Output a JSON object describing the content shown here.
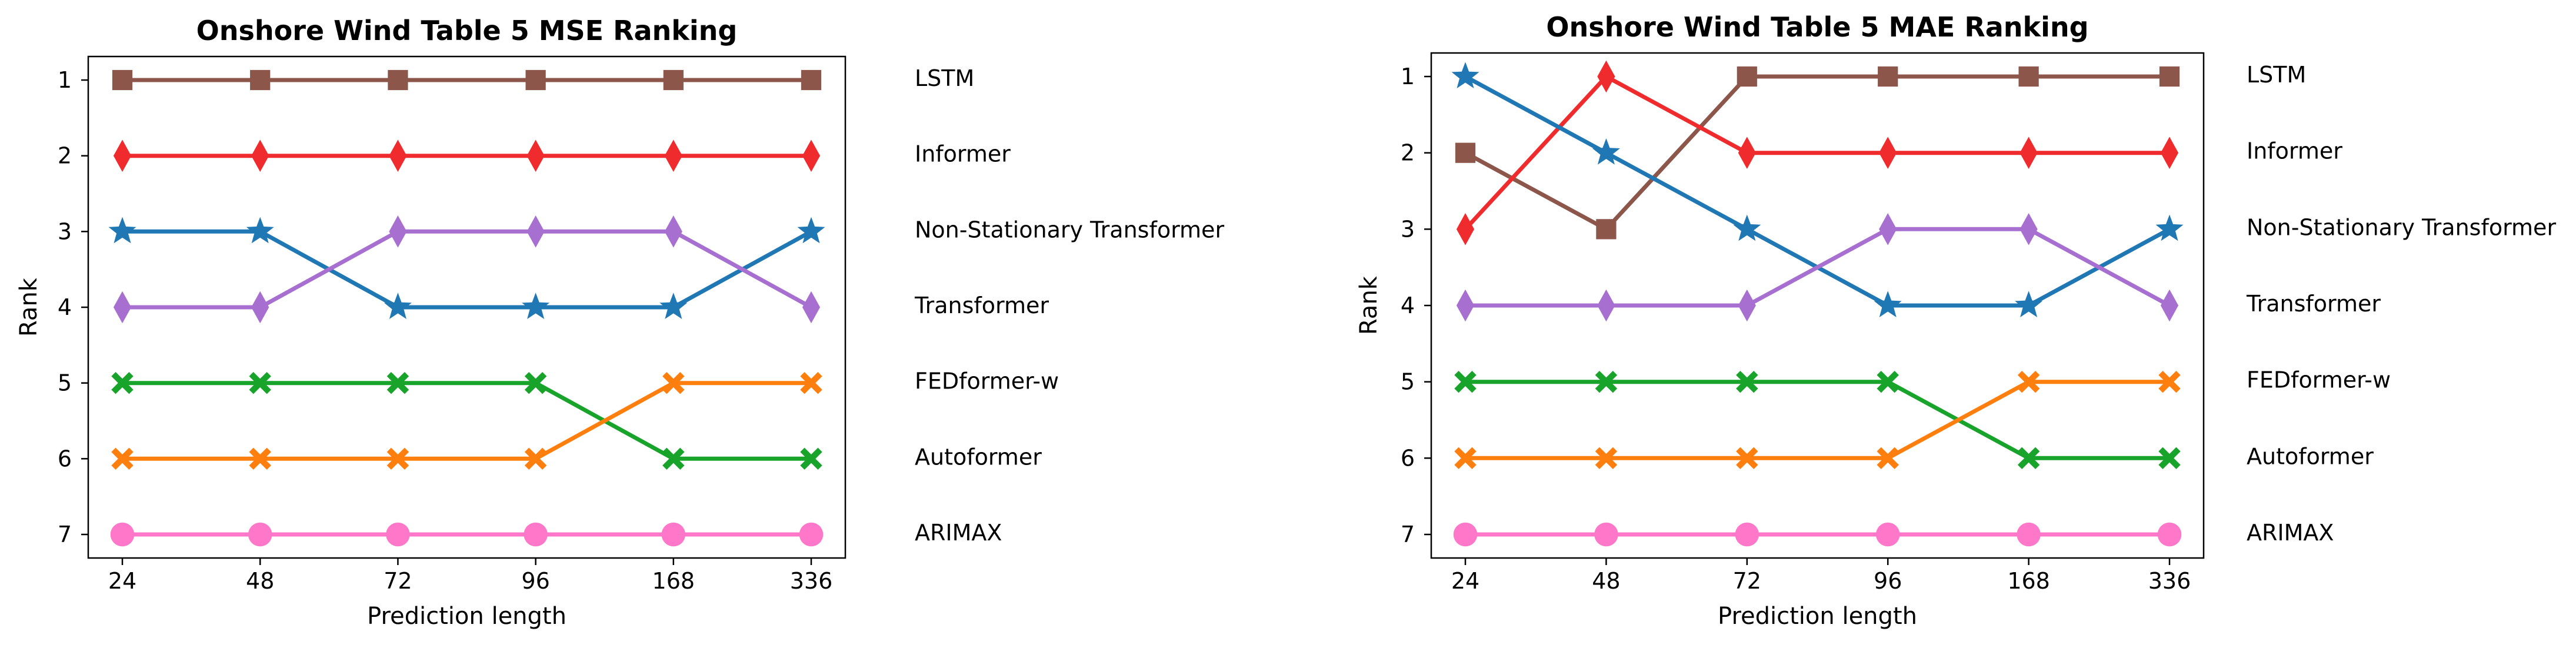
{
  "chart_data": [
    {
      "type": "line",
      "title": "Onshore Wind Table 5 MSE Ranking",
      "xlabel": "Prediction length",
      "ylabel": "Rank",
      "categories": [
        "24",
        "48",
        "72",
        "96",
        "168",
        "336"
      ],
      "ylim": [
        1,
        7
      ],
      "y_inverted": true,
      "yticks": [
        "1",
        "2",
        "3",
        "4",
        "5",
        "6",
        "7"
      ],
      "grid": false,
      "legend": "right-side labels",
      "right_labels": [
        "LSTM",
        "Informer",
        "Non-Stationary Transformer",
        "Transformer",
        "FEDformer-w",
        "Autoformer",
        "ARIMAX"
      ],
      "series": [
        {
          "values": [
            1,
            1,
            1,
            1,
            1,
            1
          ],
          "color": "#8c564b",
          "marker": "square"
        },
        {
          "values": [
            2,
            2,
            2,
            2,
            2,
            2
          ],
          "color": "#ef2b2d",
          "marker": "thin-diamond"
        },
        {
          "values": [
            3,
            3,
            4,
            4,
            4,
            3
          ],
          "color": "#1f77b4",
          "marker": "star"
        },
        {
          "values": [
            4,
            4,
            3,
            3,
            3,
            4
          ],
          "color": "#a76fd0",
          "marker": "thin-diamond"
        },
        {
          "values": [
            5,
            5,
            5,
            5,
            6,
            6
          ],
          "color": "#18a32a",
          "marker": "x"
        },
        {
          "values": [
            6,
            6,
            6,
            6,
            5,
            5
          ],
          "color": "#ff7f0e",
          "marker": "x"
        },
        {
          "values": [
            7,
            7,
            7,
            7,
            7,
            7
          ],
          "color": "#ff77c8",
          "marker": "circle"
        }
      ]
    },
    {
      "type": "line",
      "title": "Onshore Wind Table 5 MAE Ranking",
      "xlabel": "Prediction length",
      "ylabel": "Rank",
      "categories": [
        "24",
        "48",
        "72",
        "96",
        "168",
        "336"
      ],
      "ylim": [
        1,
        7
      ],
      "y_inverted": true,
      "yticks": [
        "1",
        "2",
        "3",
        "4",
        "5",
        "6",
        "7"
      ],
      "grid": false,
      "legend": "right-side labels",
      "right_labels": [
        "LSTM",
        "Informer",
        "Non-Stationary Transformer",
        "Transformer",
        "FEDformer-w",
        "Autoformer",
        "ARIMAX"
      ],
      "series": [
        {
          "values": [
            2,
            3,
            1,
            1,
            1,
            1
          ],
          "color": "#8c564b",
          "marker": "square"
        },
        {
          "values": [
            3,
            1,
            2,
            2,
            2,
            2
          ],
          "color": "#ef2b2d",
          "marker": "thin-diamond"
        },
        {
          "values": [
            1,
            2,
            3,
            4,
            4,
            3
          ],
          "color": "#1f77b4",
          "marker": "star"
        },
        {
          "values": [
            4,
            4,
            4,
            3,
            3,
            4
          ],
          "color": "#a76fd0",
          "marker": "thin-diamond"
        },
        {
          "values": [
            5,
            5,
            5,
            5,
            6,
            6
          ],
          "color": "#18a32a",
          "marker": "x"
        },
        {
          "values": [
            6,
            6,
            6,
            6,
            5,
            5
          ],
          "color": "#ff7f0e",
          "marker": "x"
        },
        {
          "values": [
            7,
            7,
            7,
            7,
            7,
            7
          ],
          "color": "#ff77c8",
          "marker": "circle"
        }
      ]
    }
  ]
}
